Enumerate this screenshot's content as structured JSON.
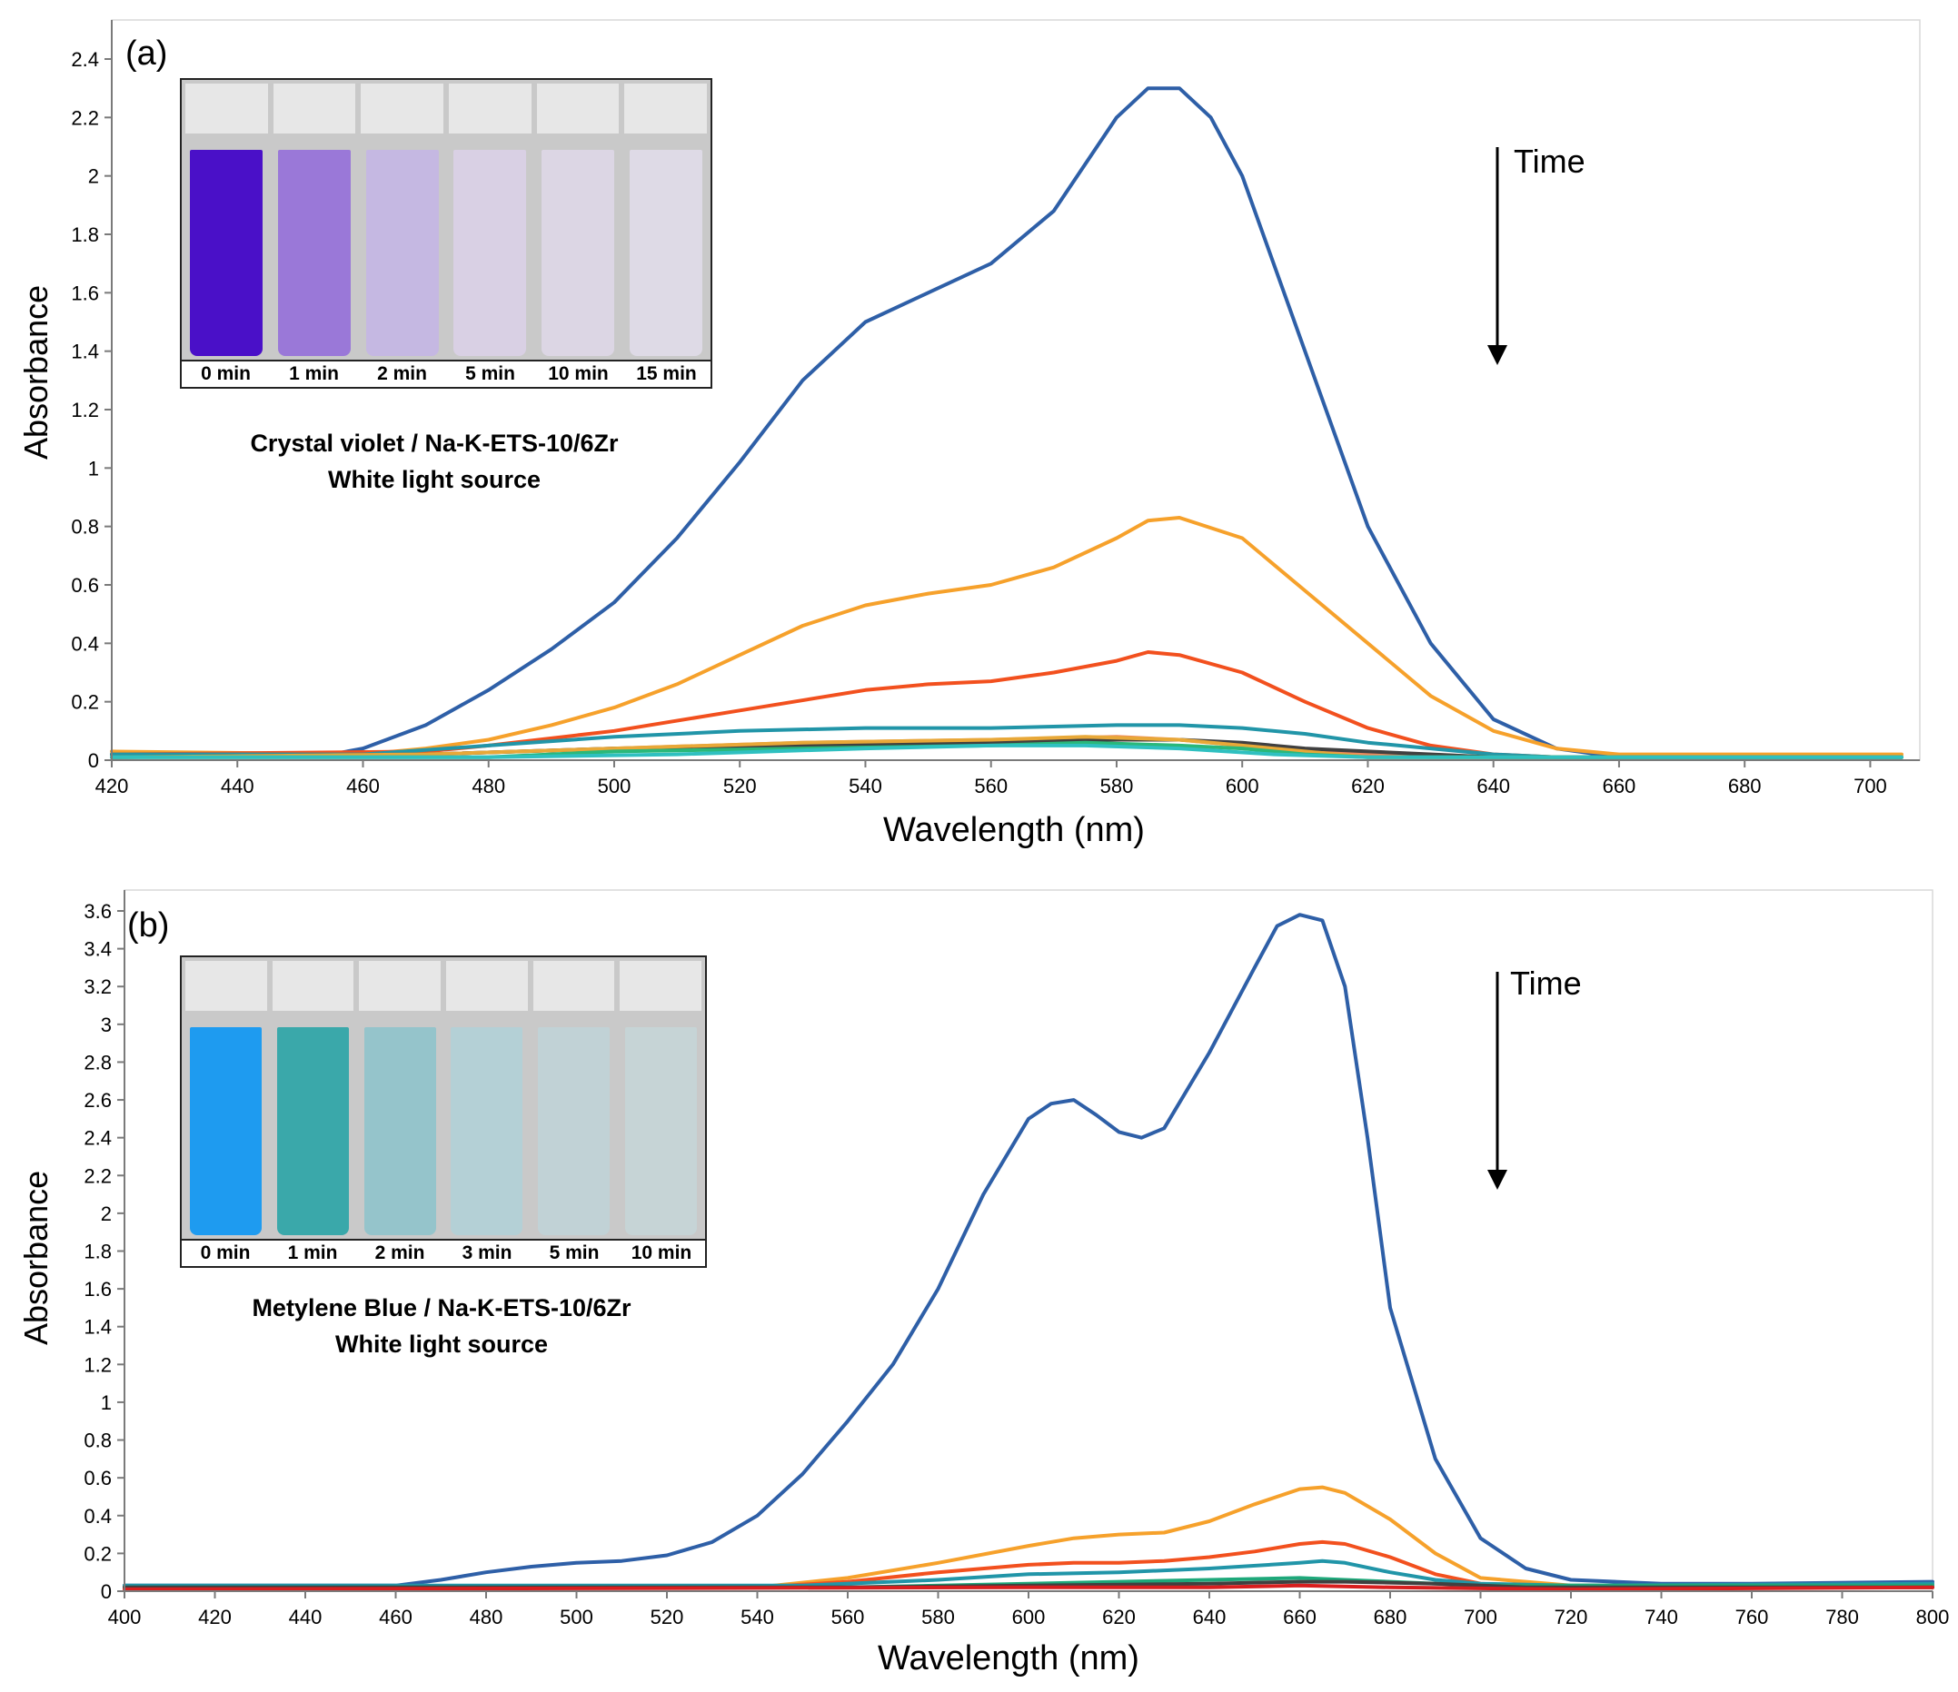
{
  "panels": [
    {
      "letter": "(a)",
      "xlabel": "Wavelength (nm)",
      "ylabel": "Absorbance",
      "time_label": "Time",
      "caption_line1": "Crystal violet / Na-K-ETS-10/6Zr",
      "caption_line2": "White light source",
      "vial_labels": [
        "0 min",
        "1 min",
        "2 min",
        "5 min",
        "10 min",
        "15 min"
      ],
      "vial_colors": [
        "#4a10c8",
        "#9a78d8",
        "#c5b8e2",
        "#d9d0e4",
        "#dcd6e4",
        "#dedae6"
      ]
    },
    {
      "letter": "(b)",
      "xlabel": "Wavelength (nm)",
      "ylabel": "Absorbance",
      "time_label": "Time",
      "caption_line1": "Metylene Blue / Na-K-ETS-10/6Zr",
      "caption_line2": "White light source",
      "vial_labels": [
        "0 min",
        "1 min",
        "2 min",
        "3 min",
        "5 min",
        "10 min"
      ],
      "vial_colors": [
        "#1e9bf0",
        "#3aa8aa",
        "#95c4cb",
        "#b4d0d6",
        "#c1d2d6",
        "#c6d4d6"
      ]
    }
  ],
  "chart_data": [
    {
      "type": "line",
      "xlabel": "Wavelength (nm)",
      "ylabel": "Absorbance",
      "xlim": [
        420,
        705
      ],
      "ylim": [
        0,
        2.4
      ],
      "xticks": [
        420,
        440,
        460,
        480,
        500,
        520,
        540,
        560,
        580,
        600,
        620,
        640,
        660,
        680,
        700
      ],
      "yticks": [
        0,
        0.2,
        0.4,
        0.6,
        0.8,
        1,
        1.2,
        1.4,
        1.6,
        1.8,
        2,
        2.2,
        2.4
      ],
      "ytick_labels": [
        "0",
        "0.2",
        "0.4",
        "0.6",
        "0.8",
        "1",
        "1.2",
        "1.4",
        "1.6",
        "1.8",
        "2",
        "2.2",
        "2.4"
      ],
      "grid": false,
      "series": [
        {
          "color": "#2e5fa7",
          "x": [
            420,
            440,
            455,
            460,
            470,
            480,
            490,
            500,
            510,
            520,
            530,
            540,
            550,
            560,
            570,
            580,
            585,
            590,
            595,
            600,
            610,
            620,
            630,
            640,
            650,
            660,
            680,
            705
          ],
          "y": [
            0.02,
            0.02,
            0.02,
            0.04,
            0.12,
            0.24,
            0.38,
            0.54,
            0.76,
            1.02,
            1.3,
            1.5,
            1.6,
            1.7,
            1.88,
            2.2,
            2.3,
            2.3,
            2.2,
            2.0,
            1.4,
            0.8,
            0.4,
            0.14,
            0.04,
            0.01,
            0.01,
            0.01
          ]
        },
        {
          "color": "#f6a12b",
          "x": [
            420,
            460,
            470,
            480,
            490,
            500,
            510,
            520,
            530,
            540,
            550,
            560,
            570,
            580,
            585,
            590,
            600,
            610,
            620,
            630,
            640,
            650,
            660,
            705
          ],
          "y": [
            0.03,
            0.02,
            0.04,
            0.07,
            0.12,
            0.18,
            0.26,
            0.36,
            0.46,
            0.53,
            0.57,
            0.6,
            0.66,
            0.76,
            0.82,
            0.83,
            0.76,
            0.58,
            0.4,
            0.22,
            0.1,
            0.04,
            0.02,
            0.02
          ]
        },
        {
          "color": "#f2501e",
          "x": [
            420,
            470,
            480,
            500,
            520,
            540,
            550,
            560,
            570,
            580,
            585,
            590,
            600,
            610,
            620,
            630,
            640,
            650,
            705
          ],
          "y": [
            0.02,
            0.03,
            0.05,
            0.1,
            0.17,
            0.24,
            0.26,
            0.27,
            0.3,
            0.34,
            0.37,
            0.36,
            0.3,
            0.2,
            0.11,
            0.05,
            0.02,
            0.01,
            0.01
          ]
        },
        {
          "color": "#2195a8",
          "x": [
            420,
            460,
            480,
            500,
            520,
            540,
            560,
            580,
            590,
            600,
            610,
            620,
            630,
            640,
            650,
            705
          ],
          "y": [
            0.02,
            0.02,
            0.05,
            0.08,
            0.1,
            0.11,
            0.11,
            0.12,
            0.12,
            0.11,
            0.09,
            0.06,
            0.04,
            0.02,
            0.01,
            0.01
          ]
        },
        {
          "color": "#f08a5d",
          "x": [
            420,
            470,
            500,
            530,
            560,
            580,
            590,
            600,
            610,
            620,
            630,
            705
          ],
          "y": [
            0.01,
            0.02,
            0.04,
            0.06,
            0.07,
            0.08,
            0.07,
            0.05,
            0.03,
            0.02,
            0.01,
            0.01
          ]
        },
        {
          "color": "#404040",
          "x": [
            420,
            470,
            500,
            530,
            560,
            580,
            590,
            600,
            610,
            620,
            640,
            705
          ],
          "y": [
            0.01,
            0.02,
            0.04,
            0.05,
            0.06,
            0.07,
            0.07,
            0.06,
            0.04,
            0.03,
            0.01,
            0.01
          ]
        },
        {
          "color": "#e8a838",
          "x": [
            420,
            470,
            500,
            530,
            560,
            575,
            590,
            600,
            610,
            620,
            705
          ],
          "y": [
            0.01,
            0.02,
            0.04,
            0.06,
            0.07,
            0.08,
            0.07,
            0.05,
            0.03,
            0.01,
            0.01
          ]
        },
        {
          "color": "#2ab87a",
          "x": [
            420,
            480,
            500,
            530,
            560,
            575,
            590,
            600,
            610,
            620,
            705
          ],
          "y": [
            0.01,
            0.01,
            0.03,
            0.04,
            0.05,
            0.06,
            0.05,
            0.04,
            0.02,
            0.01,
            0.01
          ]
        },
        {
          "color": "#2fc0c0",
          "x": [
            420,
            480,
            510,
            540,
            560,
            575,
            590,
            605,
            620,
            705
          ],
          "y": [
            0.01,
            0.01,
            0.02,
            0.04,
            0.05,
            0.05,
            0.04,
            0.02,
            0.01,
            0.01
          ]
        }
      ]
    },
    {
      "type": "line",
      "xlabel": "Wavelength (nm)",
      "ylabel": "Absorbance",
      "xlim": [
        400,
        800
      ],
      "ylim": [
        0,
        3.6
      ],
      "xticks": [
        400,
        420,
        440,
        460,
        480,
        500,
        520,
        540,
        560,
        580,
        600,
        620,
        640,
        660,
        680,
        700,
        720,
        740,
        760,
        780,
        800
      ],
      "yticks": [
        0,
        0.2,
        0.4,
        0.6,
        0.8,
        1,
        1.2,
        1.4,
        1.6,
        1.8,
        2,
        2.2,
        2.4,
        2.6,
        2.8,
        3,
        3.2,
        3.4,
        3.6
      ],
      "ytick_labels": [
        "0",
        "0.2",
        "0.4",
        "0.6",
        "0.8",
        "1",
        "1.2",
        "1.4",
        "1.6",
        "1.8",
        "2",
        "2.2",
        "2.4",
        "2.6",
        "2.8",
        "3",
        "3.2",
        "3.4",
        "3.6"
      ],
      "grid": false,
      "series": [
        {
          "color": "#2e5fa7",
          "x": [
            400,
            440,
            460,
            470,
            480,
            490,
            500,
            510,
            520,
            530,
            540,
            550,
            560,
            570,
            580,
            590,
            600,
            605,
            610,
            615,
            620,
            625,
            630,
            640,
            650,
            655,
            660,
            665,
            670,
            675,
            680,
            690,
            700,
            710,
            720,
            740,
            760,
            800
          ],
          "y": [
            0.03,
            0.03,
            0.03,
            0.06,
            0.1,
            0.13,
            0.15,
            0.16,
            0.19,
            0.26,
            0.4,
            0.62,
            0.9,
            1.2,
            1.6,
            2.1,
            2.5,
            2.58,
            2.6,
            2.52,
            2.43,
            2.4,
            2.45,
            2.85,
            3.3,
            3.52,
            3.58,
            3.55,
            3.2,
            2.4,
            1.5,
            0.7,
            0.28,
            0.12,
            0.06,
            0.04,
            0.04,
            0.05
          ]
        },
        {
          "color": "#f6a12b",
          "x": [
            400,
            540,
            560,
            580,
            600,
            610,
            620,
            630,
            640,
            650,
            660,
            665,
            670,
            680,
            690,
            700,
            720,
            800
          ],
          "y": [
            0.02,
            0.02,
            0.07,
            0.15,
            0.24,
            0.28,
            0.3,
            0.31,
            0.37,
            0.46,
            0.54,
            0.55,
            0.52,
            0.38,
            0.2,
            0.07,
            0.03,
            0.03
          ]
        },
        {
          "color": "#f2501e",
          "x": [
            400,
            540,
            560,
            580,
            600,
            610,
            620,
            630,
            640,
            650,
            660,
            665,
            670,
            680,
            690,
            700,
            720,
            800
          ],
          "y": [
            0.02,
            0.02,
            0.05,
            0.1,
            0.14,
            0.15,
            0.15,
            0.16,
            0.18,
            0.21,
            0.25,
            0.26,
            0.25,
            0.18,
            0.09,
            0.04,
            0.02,
            0.02
          ]
        },
        {
          "color": "#2195a8",
          "x": [
            400,
            550,
            580,
            600,
            620,
            640,
            660,
            665,
            670,
            680,
            690,
            700,
            720,
            800
          ],
          "y": [
            0.03,
            0.03,
            0.06,
            0.09,
            0.1,
            0.12,
            0.15,
            0.16,
            0.15,
            0.1,
            0.06,
            0.04,
            0.03,
            0.04
          ]
        },
        {
          "color": "#1ea87a",
          "x": [
            400,
            560,
            600,
            620,
            640,
            660,
            670,
            680,
            700,
            800
          ],
          "y": [
            0.02,
            0.02,
            0.04,
            0.05,
            0.06,
            0.07,
            0.06,
            0.05,
            0.03,
            0.03
          ]
        },
        {
          "color": "#404040",
          "x": [
            400,
            560,
            600,
            640,
            660,
            670,
            690,
            710,
            800
          ],
          "y": [
            0.02,
            0.02,
            0.03,
            0.04,
            0.05,
            0.05,
            0.04,
            0.02,
            0.02
          ]
        },
        {
          "color": "#d81e1e",
          "x": [
            400,
            600,
            640,
            660,
            680,
            720,
            800
          ],
          "y": [
            0.01,
            0.02,
            0.02,
            0.03,
            0.02,
            0.01,
            0.02
          ]
        }
      ]
    }
  ]
}
